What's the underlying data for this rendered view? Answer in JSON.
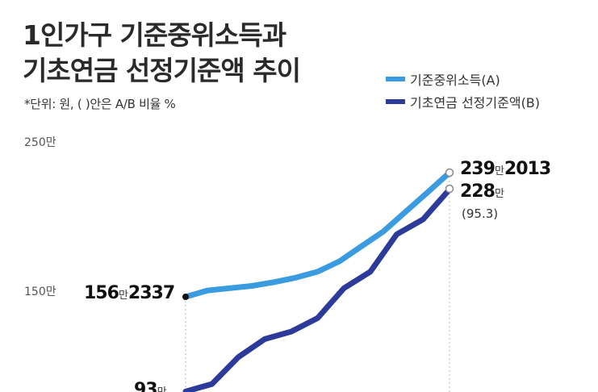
{
  "title_line1": "1인가구 기준중위소득과",
  "title_line2": "기초연금 선정기준액 추이",
  "note": "*단위: 원, ( )안은 A/B 비율 %",
  "legend": [
    {
      "label": "기준중위소득(A)",
      "color": "#3a9be0"
    },
    {
      "label": "기초연금 선정기준액(B)",
      "color": "#2c3a9a"
    }
  ],
  "chart_data": {
    "type": "line",
    "ylim": [
      0,
      2500000
    ],
    "yticks": [
      {
        "value": 2500000,
        "label": "250만"
      },
      {
        "value": 1500000,
        "label": "150만"
      }
    ],
    "series": [
      {
        "name": "기준중위소득(A)",
        "color": "#3a9be0",
        "values": [
          1562337,
          1605000,
          1620000,
          1635000,
          1660000,
          1690000,
          1730000,
          1800000,
          1900000,
          2000000,
          2130000,
          2260000,
          2392013
        ]
      },
      {
        "name": "기초연금 선정기준액(B)",
        "color": "#2c3a9a",
        "values": [
          930000,
          980000,
          1160000,
          1280000,
          1330000,
          1420000,
          1620000,
          1730000,
          1980000,
          2080000,
          2280000
        ]
      }
    ],
    "annotations": {
      "a_start_big": "156",
      "a_start_man": "만",
      "a_start_small": "2337",
      "a_end_big": "239",
      "a_end_man": "만",
      "a_end_small": "2013",
      "b_start_big": "93",
      "b_start_man": "만",
      "b_end_big": "228",
      "b_end_man": "만",
      "b_end_ratio": "(95.3)"
    }
  }
}
